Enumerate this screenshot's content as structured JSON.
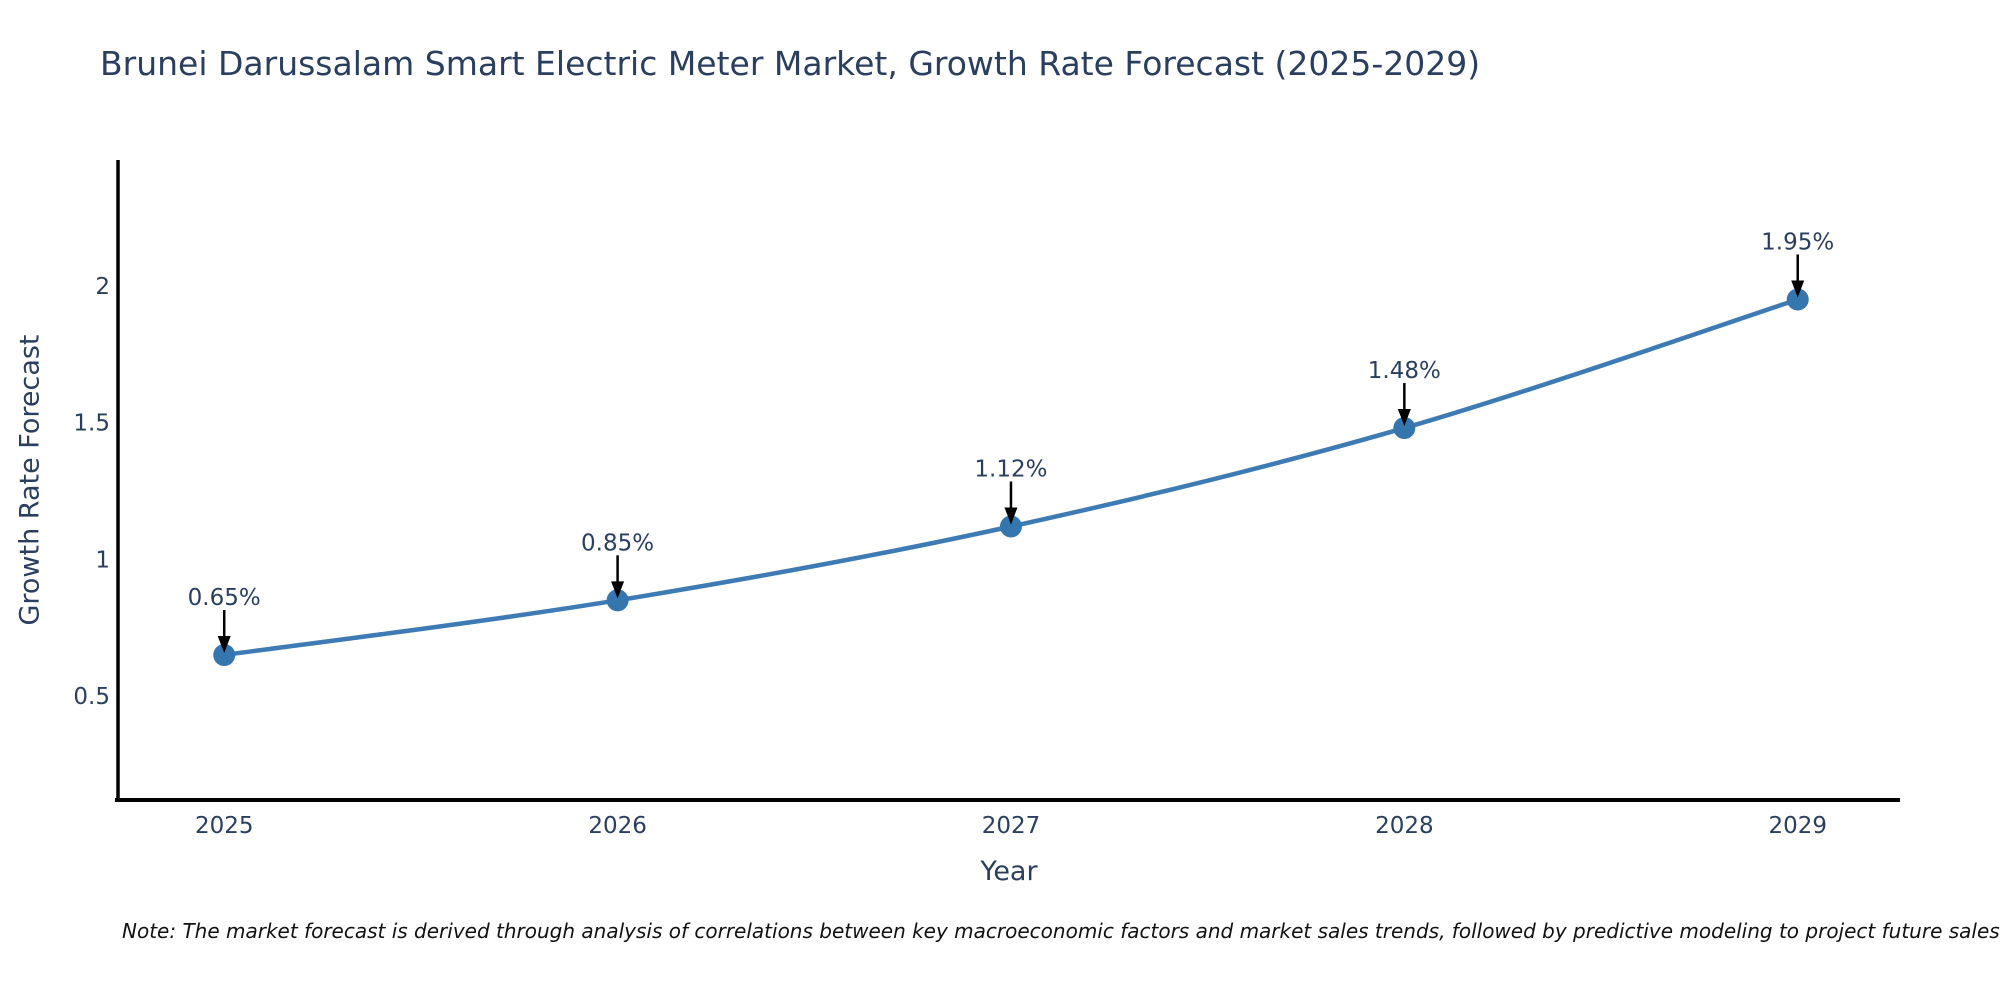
{
  "chart_data": {
    "type": "line",
    "title": "Brunei Darussalam Smart Electric Meter Market, Growth Rate Forecast (2025-2029)",
    "xlabel": "Year",
    "ylabel": "Growth Rate Forecast",
    "x": [
      2025,
      2026,
      2027,
      2028,
      2029
    ],
    "values": [
      0.65,
      0.85,
      1.12,
      1.48,
      1.95
    ],
    "point_labels": [
      "0.65%",
      "0.85%",
      "1.12%",
      "1.48%",
      "1.95%"
    ],
    "xticks": [
      "2025",
      "2026",
      "2027",
      "2028",
      "2029"
    ],
    "yticks": [
      0.5,
      1,
      1.5,
      2
    ],
    "xlim": [
      2024.73,
      2029.26
    ],
    "ylim": [
      0.12,
      2.46
    ],
    "grid": false,
    "legend": false,
    "line_color": "#3e7ab3",
    "marker_color": "#3576af",
    "axis_color": "#000000",
    "tick_color": "#2a3f5f",
    "title_color": "#2a3f5f",
    "annotation_arrow_color": "#000000"
  },
  "footnote": {
    "text": "Note: The market forecast is derived through analysis of correlations between key macroeconomic factors and market sales trends, followed by predictive modeling to project future sales"
  }
}
